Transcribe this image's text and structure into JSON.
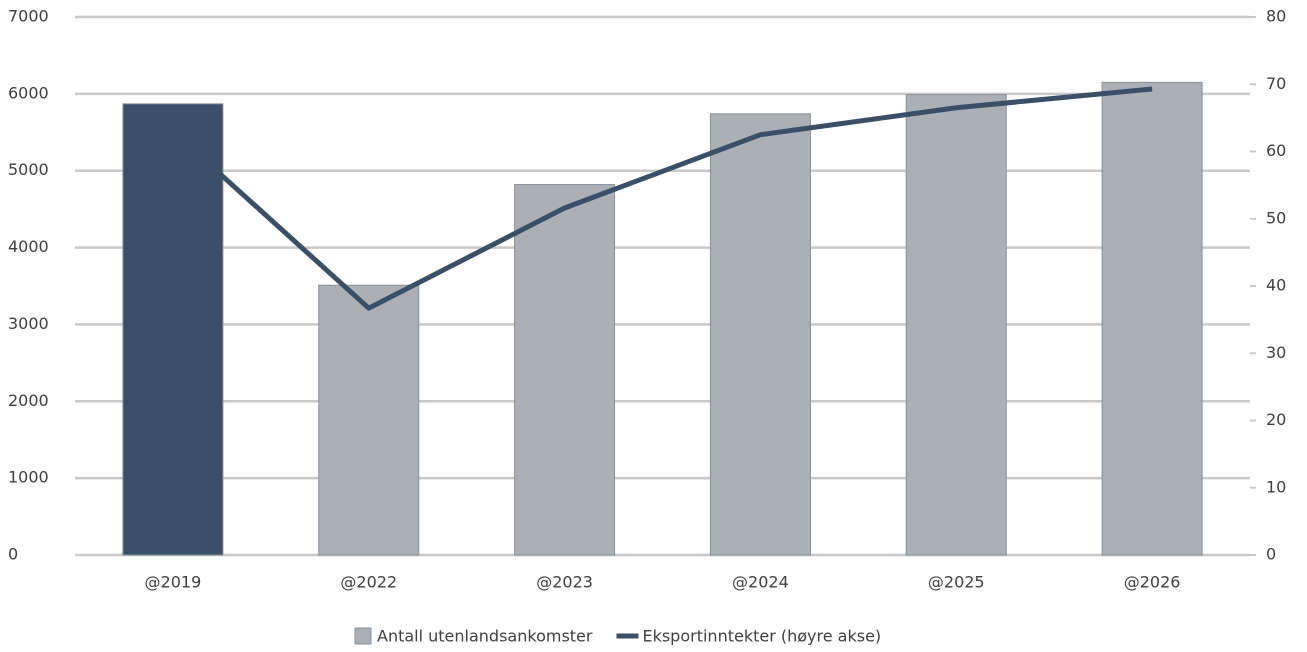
{
  "chart_data": {
    "type": "bar",
    "categories": [
      "@2019",
      "@2022",
      "@2023",
      "@2024",
      "@2025",
      "@2026"
    ],
    "series": [
      {
        "name": "Antall utenlandsankomster",
        "type": "bar",
        "color": "#aab0b6",
        "colors": [
          "#3a5068",
          "#aab0b6",
          "#aab0b6",
          "#aab0b6",
          "#aab0b6",
          "#aab0b6"
        ],
        "values": [
          5870,
          3510,
          4820,
          5740,
          5990,
          6150
        ]
      },
      {
        "name": "Eksportinntekter (høyre akse)",
        "type": "line",
        "axis": "y2",
        "color": "#3a5068",
        "values": [
          63,
          36.7,
          51.6,
          62.5,
          66.5,
          69.3
        ]
      }
    ],
    "ylim": [
      0,
      7000
    ],
    "yticks": [
      0,
      1000,
      2000,
      3000,
      4000,
      5000,
      6000,
      7000
    ],
    "y2lim": [
      0,
      80
    ],
    "y2ticks": [
      0,
      10,
      20,
      30,
      40,
      50,
      60,
      70,
      80
    ],
    "grid": true,
    "legend": "bottom"
  }
}
